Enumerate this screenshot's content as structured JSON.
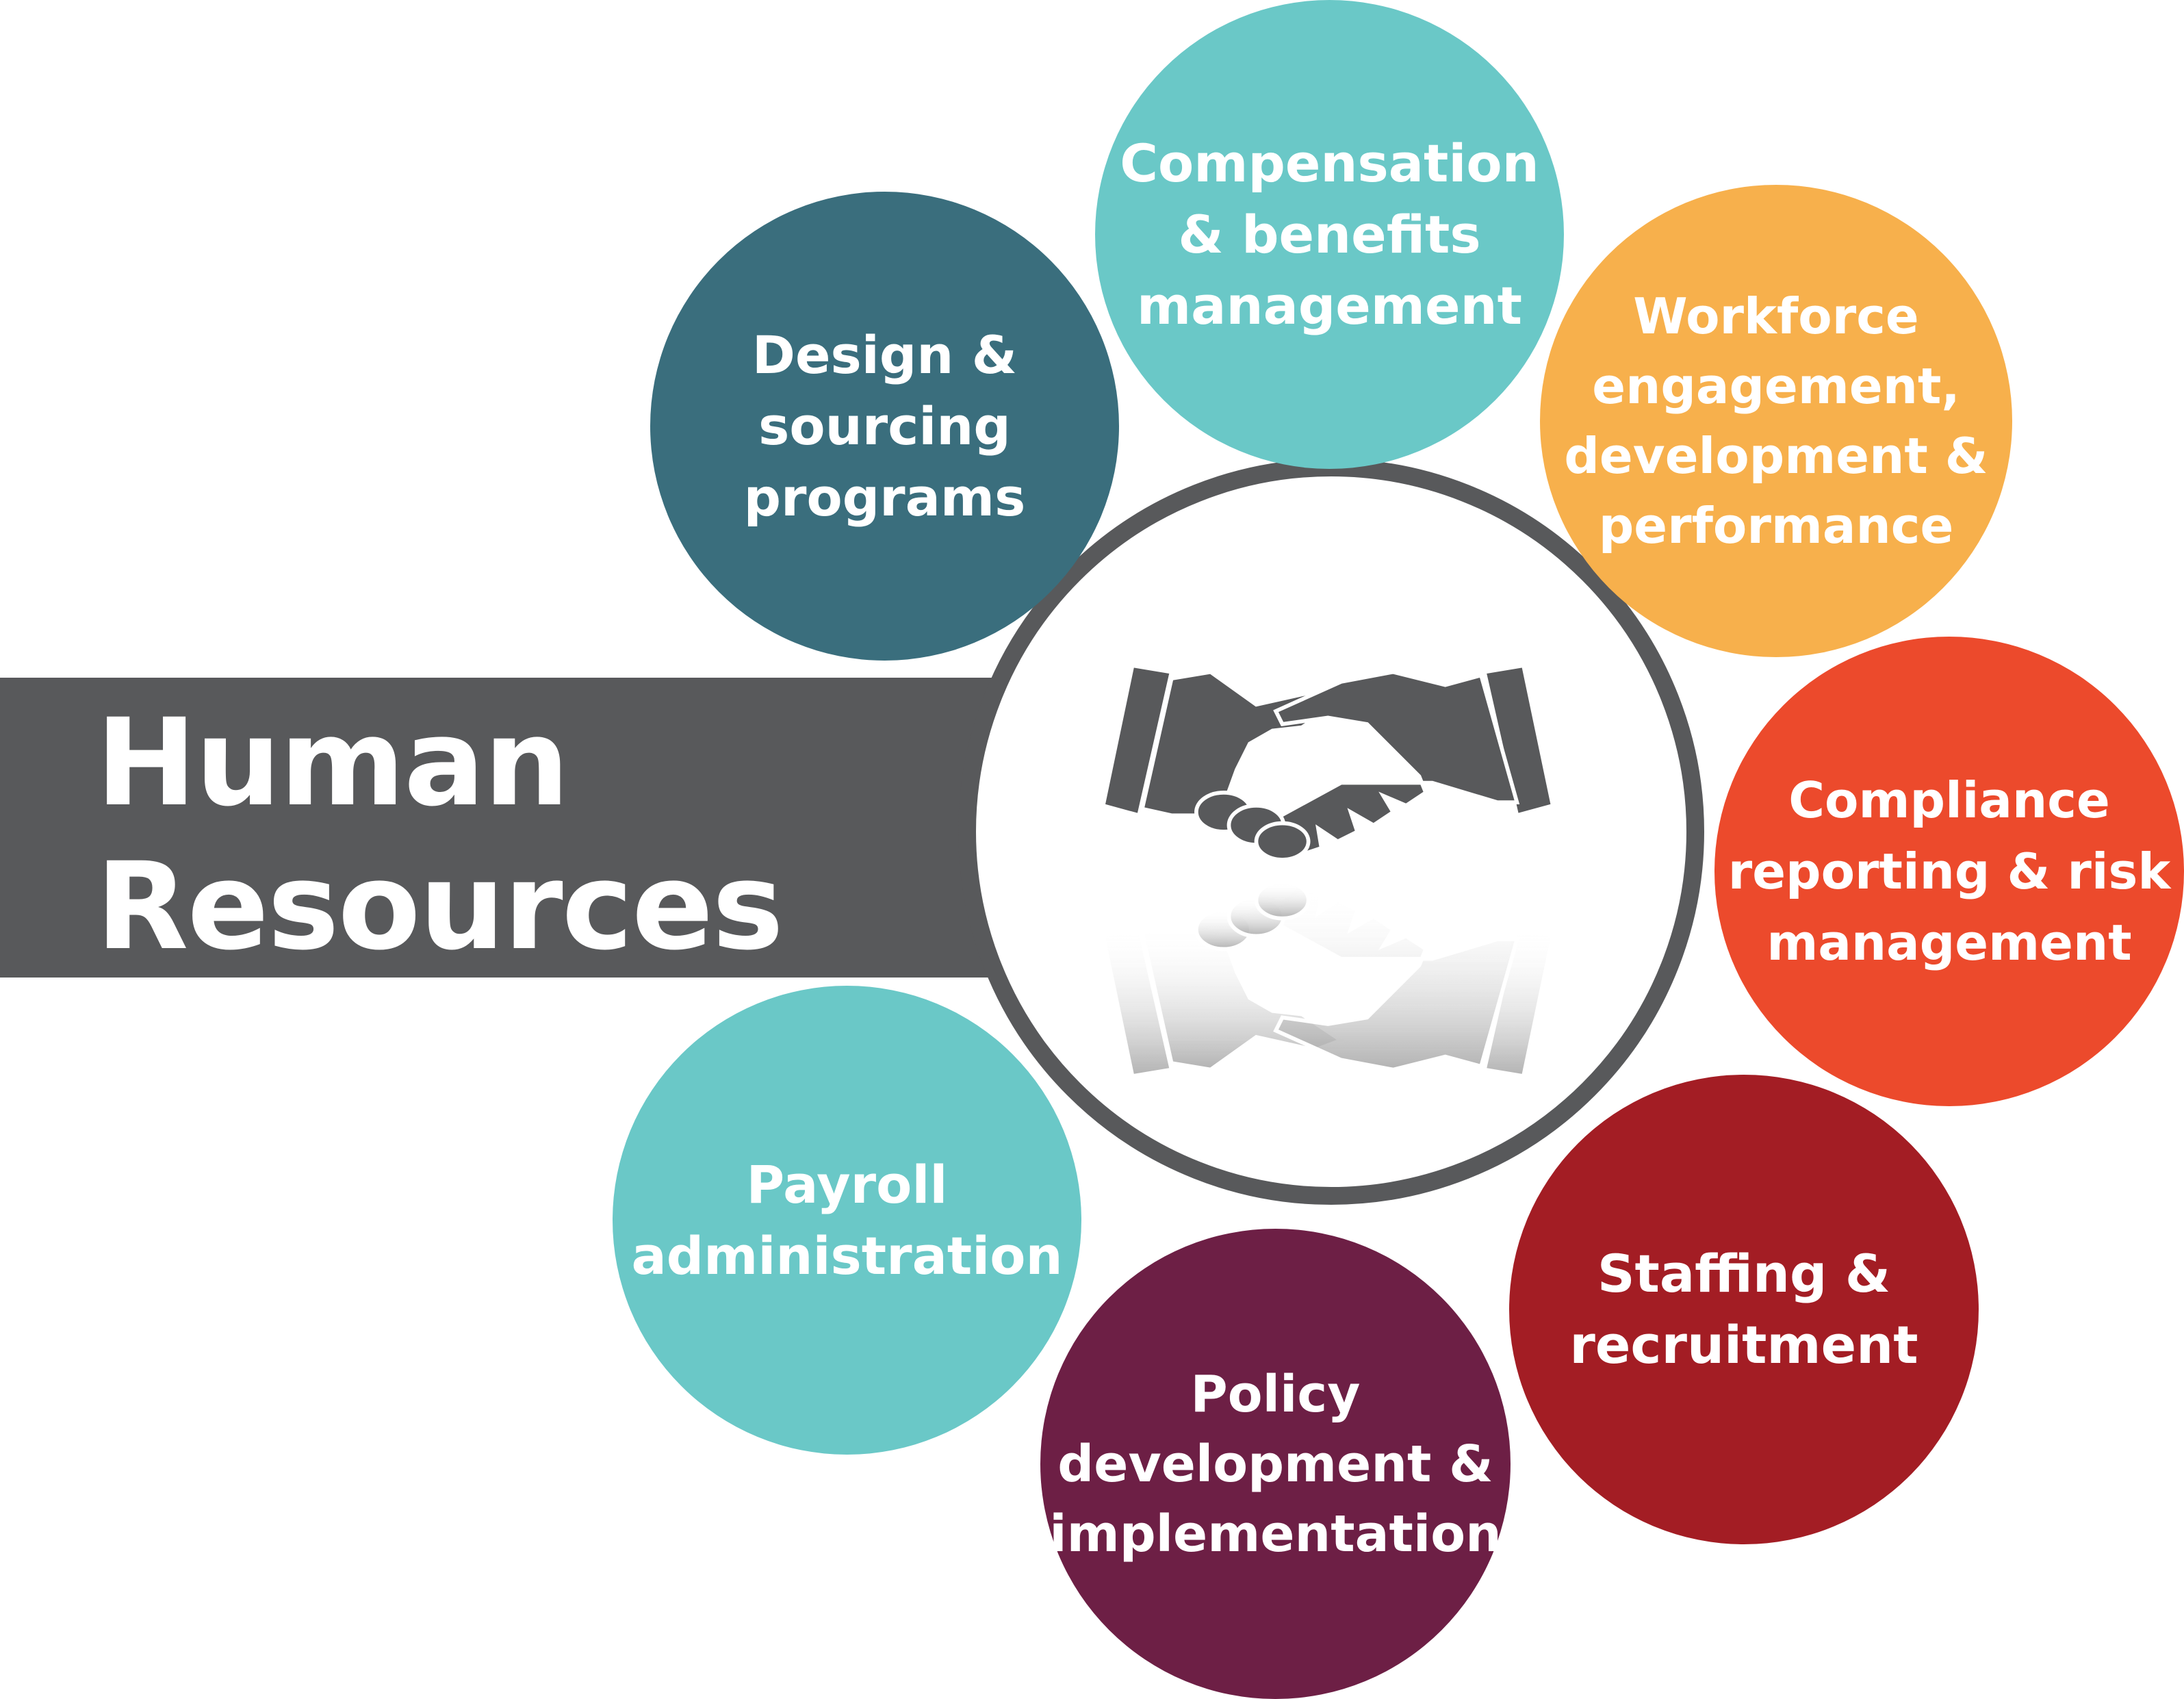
{
  "title": {
    "line1": "Human",
    "line2": "Resources",
    "bar_color": "#58595b"
  },
  "hub": {
    "icon": "handshake-icon",
    "ring_color": "#58595b"
  },
  "nodes": [
    {
      "id": "design",
      "lines": [
        "Design &",
        "sourcing",
        "programs"
      ],
      "color": "#3a6e7d"
    },
    {
      "id": "compensation",
      "lines": [
        "Compensation",
        "& benefits",
        "management"
      ],
      "color": "#6ac8c7"
    },
    {
      "id": "workforce",
      "lines": [
        "Workforce",
        "engagement,",
        "development &",
        "performance"
      ],
      "color": "#f7b04c"
    },
    {
      "id": "compliance",
      "lines": [
        "Compliance",
        "reporting & risk",
        "management"
      ],
      "color": "#ec4a2c"
    },
    {
      "id": "staffing",
      "lines": [
        "Staffing &",
        "recruitment"
      ],
      "color": "#a31d24"
    },
    {
      "id": "policy",
      "lines": [
        "Policy",
        "development &",
        "implementation"
      ],
      "color": "#6d1f45"
    },
    {
      "id": "payroll",
      "lines": [
        "Payroll",
        "administration"
      ],
      "color": "#6ac8c7"
    }
  ]
}
